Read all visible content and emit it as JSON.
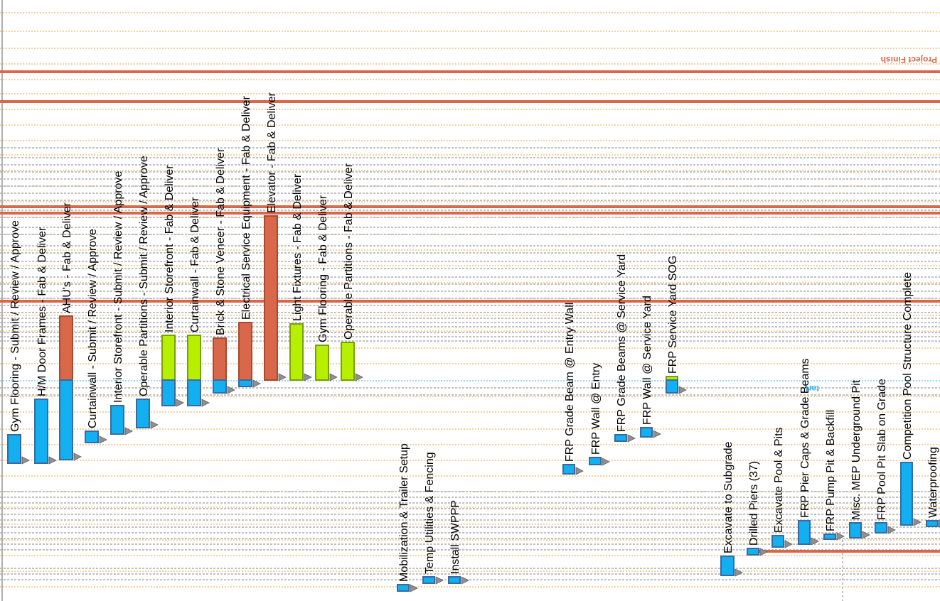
{
  "chart_data": {
    "type": "gantt",
    "title": "",
    "xlabel": "",
    "ylabel": "",
    "colors": {
      "submittal": "#12b0f0",
      "fabrication": "#d9674a",
      "fab_green": "#b6f000",
      "milestone_line": "#d9674a",
      "grid_orange": "#f0a040",
      "grid_gray": "#c0c0c0"
    },
    "milestones": [
      {
        "label": "Project Finish",
        "color": "#d9674a"
      },
      {
        "label": "tart",
        "color": "#40b0f0"
      }
    ],
    "tasks": [
      {
        "id": "t1",
        "label": "Gym Flooring - Submit / Review / Approve",
        "bars": [
          {
            "color": "blue",
            "start": 612,
            "end": 652
          }
        ]
      },
      {
        "id": "t2",
        "label": "H/M Door Frames - Fab & Deliver",
        "bars": [
          {
            "color": "blue",
            "start": 562,
            "end": 652
          }
        ]
      },
      {
        "id": "t3",
        "label": "AHU's - Fab & Deliver",
        "bars": [
          {
            "color": "red",
            "start": 445,
            "end": 535
          },
          {
            "color": "blue",
            "start": 535,
            "end": 647
          }
        ]
      },
      {
        "id": "t4",
        "label": "Curtainwall - Submit / Review / Approve",
        "bars": [
          {
            "color": "blue",
            "start": 607,
            "end": 623
          }
        ]
      },
      {
        "id": "t5",
        "label": "Interior Storefront - Submit / Review / Approve",
        "bars": [
          {
            "color": "blue",
            "start": 571,
            "end": 611
          }
        ]
      },
      {
        "id": "t6",
        "label": "Operable Partitions - Submit / Review / Approve",
        "bars": [
          {
            "color": "blue",
            "start": 562,
            "end": 602
          }
        ]
      },
      {
        "id": "t7",
        "label": "Interior Storefront - Fab & Deliver",
        "bars": [
          {
            "color": "green",
            "start": 472,
            "end": 535
          },
          {
            "color": "blue",
            "start": 535,
            "end": 571
          }
        ]
      },
      {
        "id": "t8",
        "label": "Curtainwall - Fab & Deliver",
        "bars": [
          {
            "color": "green",
            "start": 472,
            "end": 535
          },
          {
            "color": "blue",
            "start": 535,
            "end": 571
          }
        ]
      },
      {
        "id": "t9",
        "label": "Brick & Stone Veneer - Fab & Deliver",
        "bars": [
          {
            "color": "red",
            "start": 476,
            "end": 535
          },
          {
            "color": "blue",
            "start": 535,
            "end": 553
          }
        ]
      },
      {
        "id": "t10",
        "label": "Electrical Service Equipment - Fab & Deliver",
        "bars": [
          {
            "color": "red",
            "start": 454,
            "end": 535
          },
          {
            "color": "blue",
            "start": 535,
            "end": 544
          }
        ]
      },
      {
        "id": "t11",
        "label": "Elevator - Fab & Deliver",
        "bars": [
          {
            "color": "red",
            "start": 304,
            "end": 535
          }
        ]
      },
      {
        "id": "t12",
        "label": "Light Fixtures - Fab & Deliver",
        "bars": [
          {
            "color": "green",
            "start": 456,
            "end": 535
          }
        ]
      },
      {
        "id": "t13",
        "label": "Gym Flooring - Fab & Deliver",
        "bars": [
          {
            "color": "green",
            "start": 486,
            "end": 535
          }
        ]
      },
      {
        "id": "t14",
        "label": "Operable Partitions - Fab & Deliver",
        "bars": [
          {
            "color": "green",
            "start": 482,
            "end": 535
          }
        ]
      },
      {
        "id": "t15",
        "label": "Mobilization & Trailer Setup",
        "bars": [
          {
            "color": "blue",
            "start": 823,
            "end": 832
          }
        ]
      },
      {
        "id": "t16",
        "label": "Temp Utilities & Fencing",
        "bars": [
          {
            "color": "blue",
            "start": 812,
            "end": 821
          }
        ]
      },
      {
        "id": "t17",
        "label": "Install SWPPP",
        "bars": [
          {
            "color": "blue",
            "start": 812,
            "end": 821
          }
        ]
      },
      {
        "id": "t18",
        "label": "FRP Grade Beam @ Entry Wall",
        "bars": [
          {
            "color": "blue",
            "start": 654,
            "end": 667
          }
        ]
      },
      {
        "id": "t19",
        "label": "FRP Wall @ Entry",
        "bars": [
          {
            "color": "blue",
            "start": 644,
            "end": 654
          }
        ]
      },
      {
        "id": "t20",
        "label": "FRP Grade Beams @ Service Yard",
        "bars": [
          {
            "color": "blue",
            "start": 612,
            "end": 621
          }
        ]
      },
      {
        "id": "t21",
        "label": "FRP Wall @ Service Yard",
        "bars": [
          {
            "color": "blue",
            "start": 602,
            "end": 615
          }
        ]
      },
      {
        "id": "t22",
        "label": "FRP Service Yard SOG",
        "bars": [
          {
            "color": "green",
            "start": 530,
            "end": 535
          },
          {
            "color": "blue",
            "start": 535,
            "end": 553
          }
        ]
      },
      {
        "id": "t23",
        "label": "Excavate to Subgrade",
        "bars": [
          {
            "color": "blue",
            "start": 783,
            "end": 810
          }
        ]
      },
      {
        "id": "t24",
        "label": "Drilled Piers (37)",
        "bars": [
          {
            "color": "blue",
            "start": 772,
            "end": 781
          }
        ]
      },
      {
        "id": "t25",
        "label": "Excavate Pool & Pits",
        "bars": [
          {
            "color": "blue",
            "start": 754,
            "end": 770
          }
        ]
      },
      {
        "id": "t26",
        "label": "FRP Pier Caps & Grade Beams",
        "bars": [
          {
            "color": "blue",
            "start": 733,
            "end": 766
          }
        ]
      },
      {
        "id": "t27",
        "label": "FRP Pump Pit & Backfill",
        "bars": [
          {
            "color": "blue",
            "start": 752,
            "end": 759
          }
        ]
      },
      {
        "id": "t28",
        "label": "Misc. MEP Underground Pit",
        "bars": [
          {
            "color": "blue",
            "start": 736,
            "end": 757
          }
        ]
      },
      {
        "id": "t29",
        "label": "FRP Pool Pit Slab on Grade",
        "bars": [
          {
            "color": "blue",
            "start": 736,
            "end": 750
          }
        ]
      },
      {
        "id": "t30",
        "label": "Competition Pool Structure Complete",
        "bars": [
          {
            "color": "blue",
            "start": 651,
            "end": 739
          }
        ]
      },
      {
        "id": "t31",
        "label": "Waterproofing",
        "bars": [
          {
            "color": "blue",
            "start": 733,
            "end": 741
          }
        ]
      }
    ]
  }
}
